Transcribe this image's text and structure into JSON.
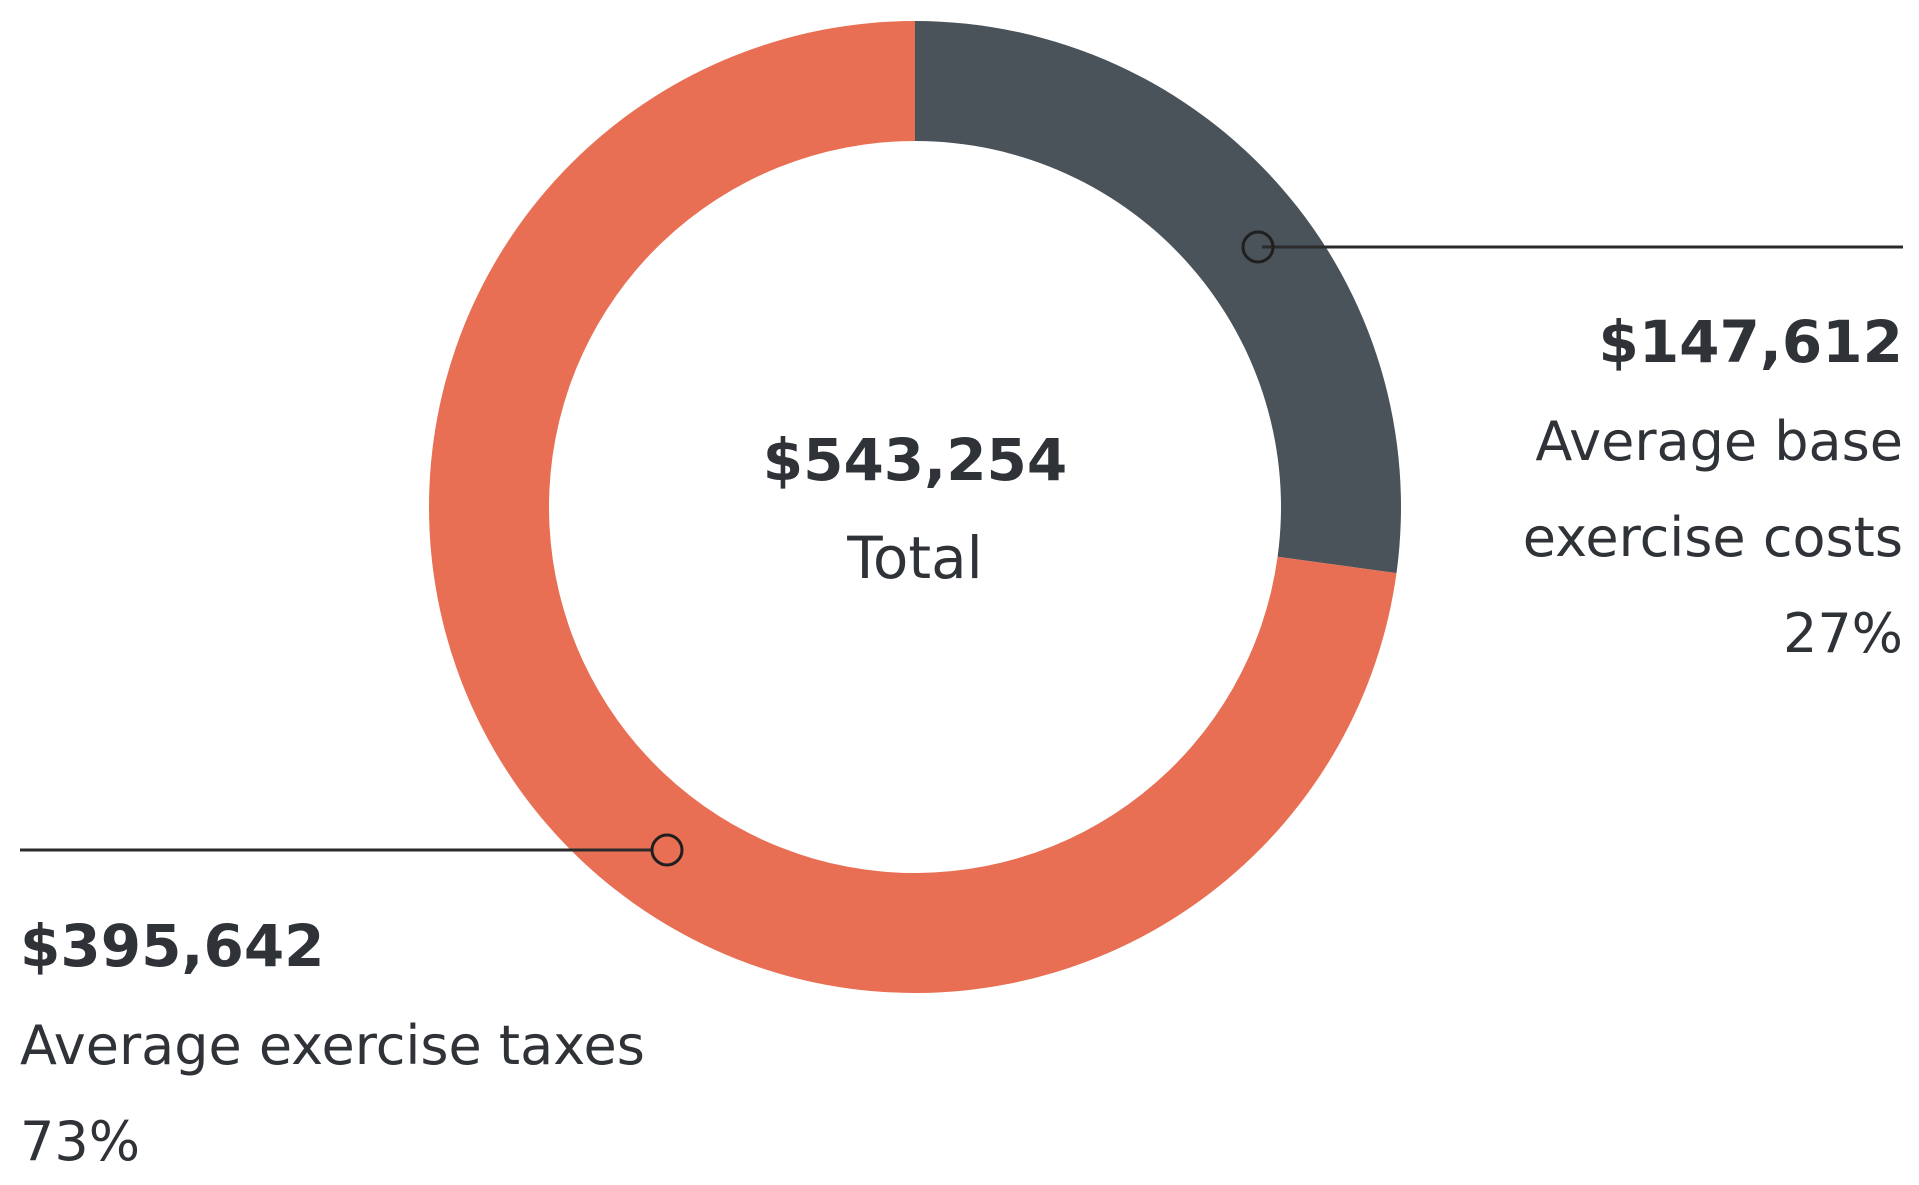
{
  "chart_data": {
    "type": "pie",
    "center": {
      "value": "$543,254",
      "label": "Total"
    },
    "series": [
      {
        "name": "Average base exercise costs",
        "value": 147612,
        "percent": 27,
        "color": "#4a525a",
        "display_value": "$147,612",
        "label_lines": [
          "Average base",
          "exercise costs"
        ],
        "percent_label": "27%"
      },
      {
        "name": "Average exercise taxes",
        "value": 395642,
        "percent": 73,
        "color": "#e86f53",
        "display_value": "$395,642",
        "label_lines": [
          "Average exercise taxes"
        ],
        "percent_label": "73%"
      }
    ],
    "total": 543254,
    "legend": "callouts"
  }
}
